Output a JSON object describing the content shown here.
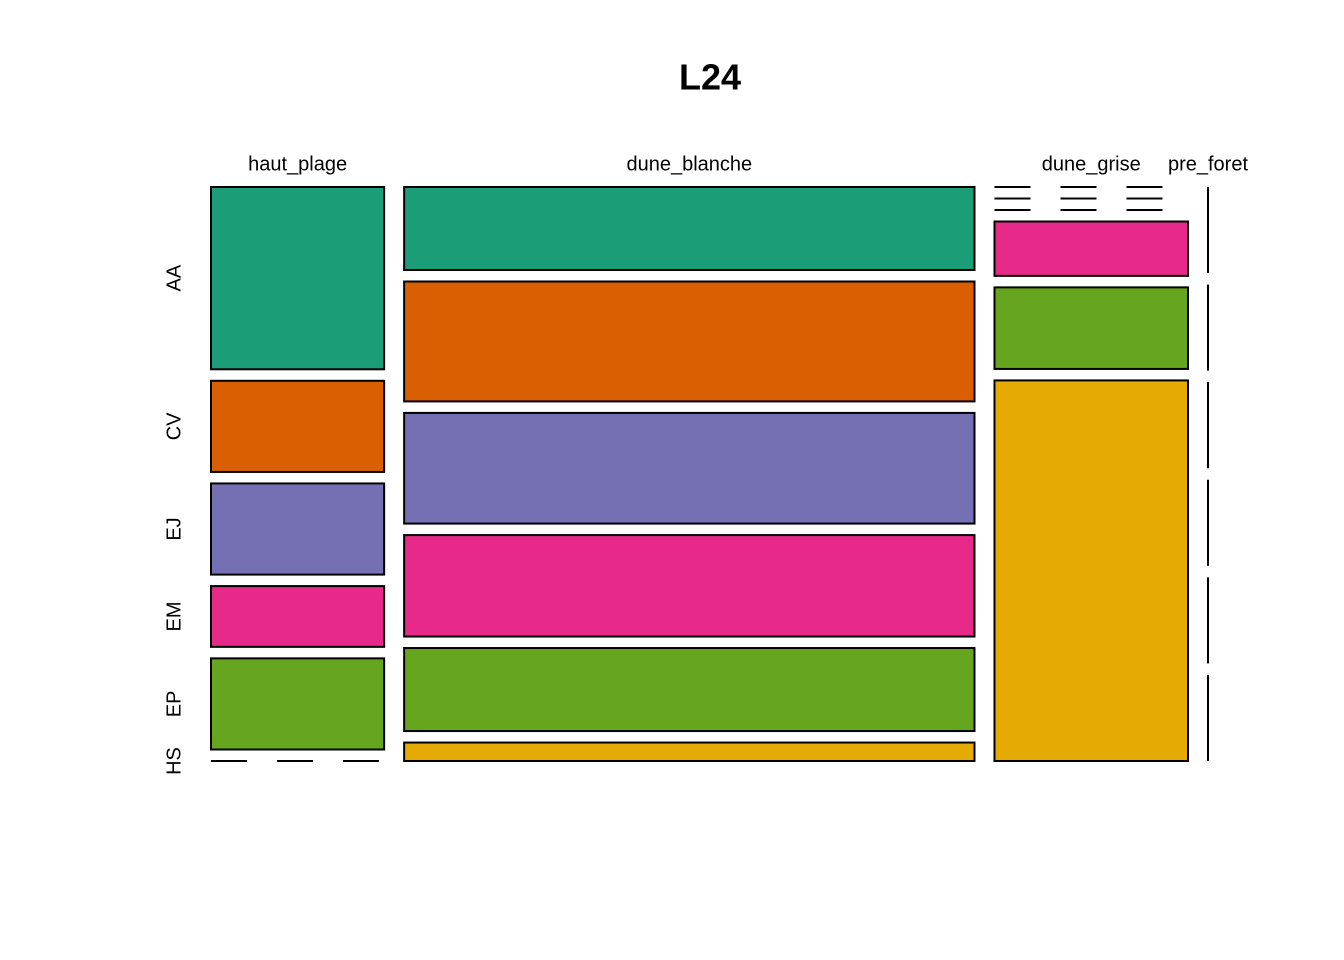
{
  "chart_data": {
    "type": "mosaic",
    "title": "L24",
    "categories": [
      "haut_plage",
      "dune_blanche",
      "dune_grise",
      "pre_foret"
    ],
    "series": [
      {
        "name": "AA",
        "color": "#1B9E77",
        "values": [
          6,
          9,
          0,
          0
        ]
      },
      {
        "name": "CV",
        "color": "#D95F02",
        "values": [
          3,
          13,
          0,
          0
        ]
      },
      {
        "name": "EJ",
        "color": "#7570B3",
        "values": [
          3,
          12,
          0,
          0
        ]
      },
      {
        "name": "EM",
        "color": "#E7298A",
        "values": [
          2,
          11,
          2,
          0
        ]
      },
      {
        "name": "EP",
        "color": "#66A61E",
        "values": [
          3,
          9,
          3,
          0
        ]
      },
      {
        "name": "HS",
        "color": "#E6AB02",
        "values": [
          0,
          2,
          14,
          0
        ]
      }
    ]
  }
}
